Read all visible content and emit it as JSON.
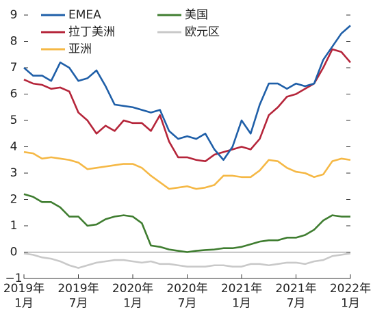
{
  "chart_data": {
    "type": "line",
    "x": [
      0,
      1,
      2,
      3,
      4,
      5,
      6,
      7,
      8,
      9,
      10,
      11,
      12,
      13,
      14,
      15,
      16,
      17,
      18,
      19,
      20,
      21,
      22,
      23,
      24,
      25,
      26,
      27,
      28,
      29,
      30,
      31,
      32,
      33,
      34,
      35,
      36
    ],
    "xlim": [
      0,
      36
    ],
    "xticks": [
      {
        "value": 0,
        "label": "2019年\n1月"
      },
      {
        "value": 6,
        "label": "2019年\n7月"
      },
      {
        "value": 12,
        "label": "2020年\n1月"
      },
      {
        "value": 18,
        "label": "2020年\n7月"
      },
      {
        "value": 24,
        "label": "2021年\n1月"
      },
      {
        "value": 30,
        "label": "2021年\n7月"
      },
      {
        "value": 36,
        "label": "2022年\n1月"
      }
    ],
    "ylim": [
      -1,
      9
    ],
    "yticks": [
      {
        "value": -1,
        "label": "−1"
      },
      0,
      1,
      2,
      3,
      4,
      5,
      6,
      7,
      8,
      9
    ],
    "zero_line": true,
    "series": [
      {
        "name": "EMEA",
        "color": "#1f5fa8",
        "values": [
          7.0,
          6.7,
          6.7,
          6.5,
          7.2,
          7.0,
          6.5,
          6.6,
          6.9,
          6.3,
          5.6,
          5.55,
          5.5,
          5.4,
          5.3,
          5.4,
          4.6,
          4.3,
          4.4,
          4.3,
          4.5,
          3.9,
          3.5,
          4.0,
          5.0,
          4.5,
          5.6,
          6.4,
          6.4,
          6.2,
          6.4,
          6.3,
          6.4,
          7.3,
          7.8,
          8.3,
          8.6
        ]
      },
      {
        "name": "拉丁美洲",
        "color": "#b5253a",
        "values": [
          6.55,
          6.4,
          6.35,
          6.2,
          6.25,
          6.1,
          5.3,
          5.0,
          4.5,
          4.8,
          4.6,
          5.0,
          4.9,
          4.9,
          4.6,
          5.2,
          4.2,
          3.6,
          3.6,
          3.5,
          3.45,
          3.7,
          3.8,
          3.9,
          4.0,
          3.9,
          4.3,
          5.2,
          5.5,
          5.9,
          6.0,
          6.2,
          6.4,
          7.0,
          7.7,
          7.6,
          7.2
        ]
      },
      {
        "name": "亚洲",
        "color": "#f5b845",
        "values": [
          3.8,
          3.75,
          3.55,
          3.6,
          3.55,
          3.5,
          3.4,
          3.15,
          3.2,
          3.25,
          3.3,
          3.35,
          3.35,
          3.2,
          2.9,
          2.65,
          2.4,
          2.45,
          2.5,
          2.4,
          2.45,
          2.55,
          2.9,
          2.9,
          2.85,
          2.85,
          3.1,
          3.5,
          3.45,
          3.2,
          3.05,
          3.0,
          2.85,
          2.95,
          3.45,
          3.55,
          3.5
        ]
      },
      {
        "name": "美国",
        "color": "#3f7d30",
        "values": [
          2.2,
          2.1,
          1.9,
          1.9,
          1.7,
          1.35,
          1.35,
          1.0,
          1.05,
          1.25,
          1.35,
          1.4,
          1.35,
          1.1,
          0.25,
          0.2,
          0.1,
          0.05,
          0.0,
          0.05,
          0.08,
          0.1,
          0.15,
          0.15,
          0.2,
          0.3,
          0.4,
          0.45,
          0.45,
          0.55,
          0.55,
          0.65,
          0.85,
          1.2,
          1.4,
          1.35,
          1.35
        ]
      },
      {
        "name": "欧元区",
        "color": "#c9c9c9",
        "values": [
          -0.05,
          -0.1,
          -0.2,
          -0.25,
          -0.35,
          -0.5,
          -0.6,
          -0.5,
          -0.4,
          -0.35,
          -0.3,
          -0.3,
          -0.35,
          -0.4,
          -0.35,
          -0.45,
          -0.45,
          -0.5,
          -0.55,
          -0.55,
          -0.55,
          -0.5,
          -0.5,
          -0.55,
          -0.55,
          -0.45,
          -0.45,
          -0.5,
          -0.45,
          -0.4,
          -0.4,
          -0.45,
          -0.35,
          -0.3,
          -0.15,
          -0.1,
          -0.05
        ]
      }
    ]
  }
}
